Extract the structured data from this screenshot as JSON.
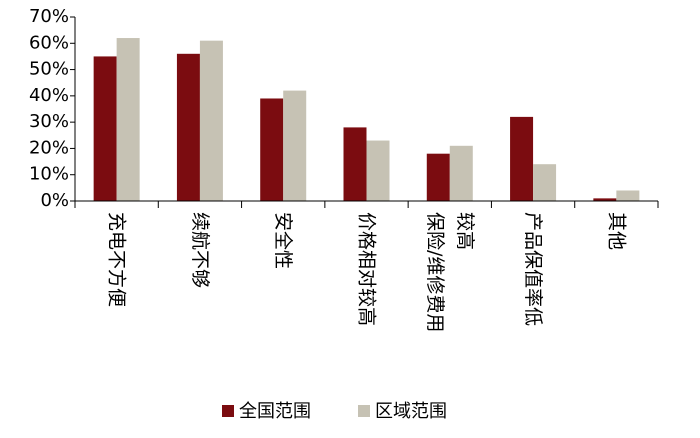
{
  "chart_data": {
    "type": "bar",
    "categories": [
      "充电不方便",
      "续航不够",
      "安全性",
      "价格相对较高",
      "保险/维修费用\n较高",
      "产品保值率低",
      "其他"
    ],
    "series": [
      {
        "name": "全国范围",
        "color": "#7b0c10",
        "values": [
          55,
          56,
          39,
          28,
          18,
          32,
          1
        ]
      },
      {
        "name": "区域范围",
        "color": "#c6c2b4",
        "values": [
          62,
          61,
          42,
          23,
          21,
          14,
          4
        ]
      }
    ],
    "ylim": [
      0,
      70
    ],
    "yticks": [
      {
        "value": 0,
        "label": "0%"
      },
      {
        "value": 10,
        "label": "10%"
      },
      {
        "value": 20,
        "label": "20%"
      },
      {
        "value": 30,
        "label": "30%"
      },
      {
        "value": 40,
        "label": "40%"
      },
      {
        "value": 50,
        "label": "50%"
      },
      {
        "value": 60,
        "label": "60%"
      },
      {
        "value": 70,
        "label": "70%"
      }
    ],
    "legend": "bottom"
  }
}
